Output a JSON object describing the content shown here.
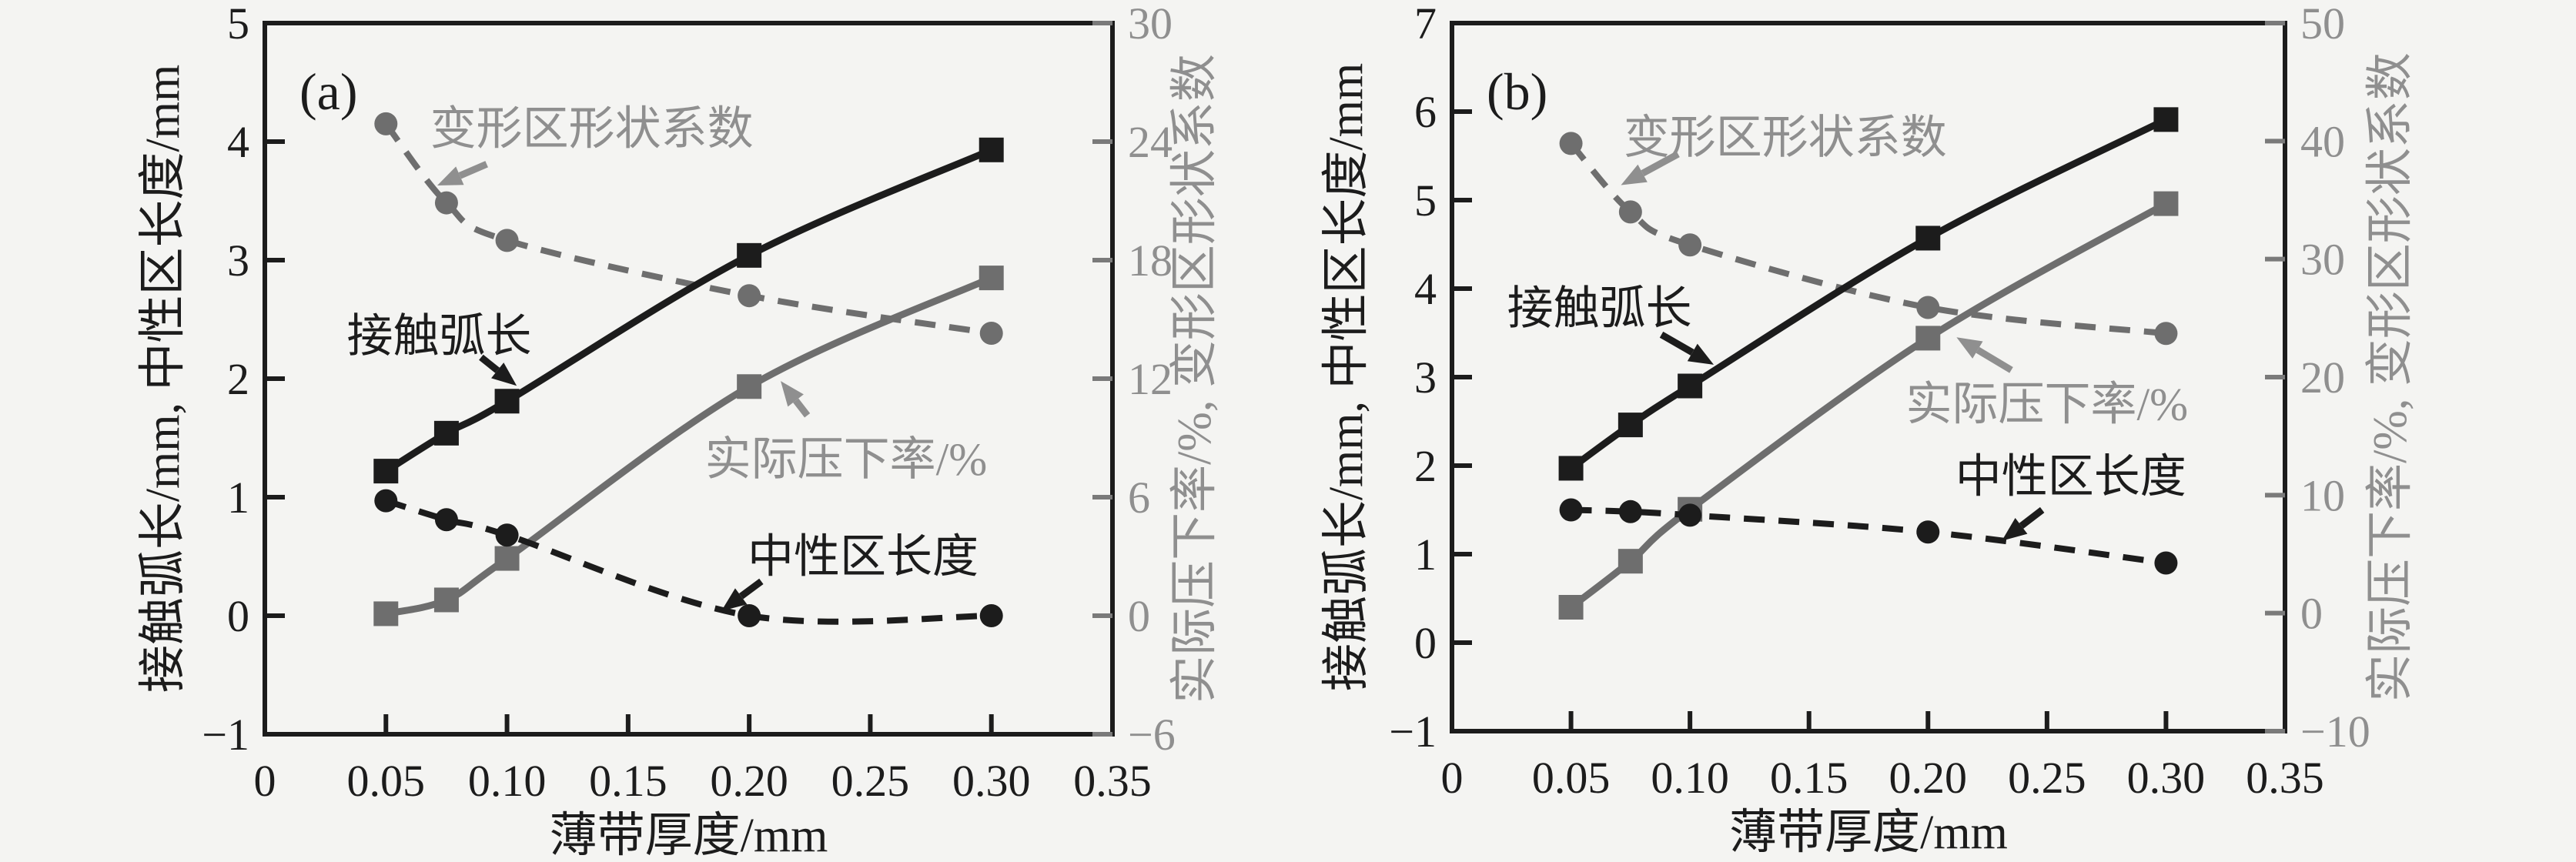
{
  "figure": {
    "background": "#f4f4f2",
    "description_labels": {
      "x_axis_title": "薄带厚度/mm",
      "left_axis_title": "接触弧长/mm, 中性区长度/mm",
      "right_axis_title": "实际压下率/%, 变形区形状系数"
    }
  },
  "chart_data": [
    {
      "type": "line",
      "panel_label": "(a)",
      "xlabel": "薄带厚度/mm",
      "ylabel_left": "接触弧长/mm, 中性区长度/mm",
      "ylabel_right": "实际压下率/%, 变形区形状系数",
      "xlim": [
        0,
        0.35
      ],
      "ylim_left": [
        -1,
        5
      ],
      "ylim_right": [
        -6,
        30
      ],
      "x_ticks": [
        0,
        0.05,
        0.1,
        0.15,
        0.2,
        0.25,
        0.3,
        0.35
      ],
      "x_tick_labels": [
        "0",
        "0.05",
        "0.10",
        "0.15",
        "0.20",
        "0.25",
        "0.30",
        "0.35"
      ],
      "y_ticks_left": [
        -1,
        0,
        1,
        2,
        3,
        4,
        5
      ],
      "y_tick_labels_left": [
        "−1",
        "0",
        "1",
        "2",
        "3",
        "4",
        "5"
      ],
      "y_ticks_right": [
        -6,
        0,
        6,
        12,
        18,
        24,
        30
      ],
      "y_tick_labels_right": [
        "−6",
        "0",
        "6",
        "12",
        "18",
        "24",
        "30"
      ],
      "x": [
        0.05,
        0.075,
        0.1,
        0.2,
        0.3
      ],
      "series": [
        {
          "name": "接触弧长",
          "axis": "left",
          "line": "solid",
          "marker": "square",
          "color": "#1c1c1c",
          "values": [
            1.22,
            1.54,
            1.81,
            3.04,
            3.93
          ]
        },
        {
          "name": "中性区长度",
          "axis": "left",
          "line": "dashed",
          "marker": "circle",
          "color": "#1c1c1c",
          "values": [
            0.97,
            0.81,
            0.68,
            0.0,
            0.0
          ]
        },
        {
          "name": "实际压下率/%",
          "axis": "right",
          "line": "solid",
          "marker": "square",
          "color": "#6e6e6e",
          "values": [
            0.1,
            0.8,
            2.9,
            11.6,
            17.1
          ]
        },
        {
          "name": "变形区形状系数",
          "axis": "right",
          "line": "dashed",
          "marker": "circle",
          "color": "#6e6e6e",
          "values": [
            24.9,
            20.9,
            19.0,
            16.2,
            14.3
          ]
        }
      ],
      "annotations": [
        {
          "text": "变形区形状系数",
          "color": "#8f8f8f",
          "x": 0.135,
          "y": 4.12,
          "arrow": {
            "x1": 0.0916,
            "y1": 3.81,
            "x2": 0.0712,
            "y2": 3.63
          }
        },
        {
          "text": "接触弧长",
          "color": "#1c1c1c",
          "x": 0.072,
          "y": 2.37,
          "arrow": {
            "x1": 0.0893,
            "y1": 2.18,
            "x2": 0.104,
            "y2": 1.94
          }
        },
        {
          "text": "实际压下率/%",
          "color": "#8f8f8f",
          "x": 0.24,
          "y": 1.33,
          "arrow": {
            "x1": 0.224,
            "y1": 1.69,
            "x2": 0.213,
            "y2": 1.98
          }
        },
        {
          "text": "中性区长度",
          "color": "#1c1c1c",
          "x": 0.247,
          "y": 0.51,
          "arrow": {
            "x1": 0.205,
            "y1": 0.29,
            "x2": 0.1885,
            "y2": 0.04
          }
        }
      ]
    },
    {
      "type": "line",
      "panel_label": "(b)",
      "xlabel": "薄带厚度/mm",
      "ylabel_left": "接触弧长/mm, 中性区长度/mm",
      "ylabel_right": "实际压下率/%, 变形区形状系数",
      "xlim": [
        0,
        0.35
      ],
      "ylim_left": [
        -1,
        7
      ],
      "ylim_right": [
        -10,
        50
      ],
      "x_ticks": [
        0,
        0.05,
        0.1,
        0.15,
        0.2,
        0.25,
        0.3,
        0.35
      ],
      "x_tick_labels": [
        "0",
        "0.05",
        "0.10",
        "0.15",
        "0.20",
        "0.25",
        "0.30",
        "0.35"
      ],
      "y_ticks_left": [
        -1,
        0,
        1,
        2,
        3,
        4,
        5,
        6,
        7
      ],
      "y_tick_labels_left": [
        "−1",
        "0",
        "1",
        "2",
        "3",
        "4",
        "5",
        "6",
        "7"
      ],
      "y_ticks_right": [
        -10,
        0,
        10,
        20,
        30,
        40,
        50
      ],
      "y_tick_labels_right": [
        "−10",
        "0",
        "10",
        "20",
        "30",
        "40",
        "50"
      ],
      "x": [
        0.05,
        0.075,
        0.1,
        0.2,
        0.3
      ],
      "series": [
        {
          "name": "接触弧长",
          "axis": "left",
          "line": "solid",
          "marker": "square",
          "color": "#1c1c1c",
          "values": [
            1.97,
            2.46,
            2.9,
            4.57,
            5.91
          ]
        },
        {
          "name": "中性区长度",
          "axis": "left",
          "line": "dashed",
          "marker": "circle",
          "color": "#1c1c1c",
          "values": [
            1.5,
            1.48,
            1.44,
            1.25,
            0.9
          ]
        },
        {
          "name": "实际压下率/%",
          "axis": "right",
          "line": "solid",
          "marker": "square",
          "color": "#6e6e6e",
          "values": [
            0.5,
            4.4,
            8.8,
            23.3,
            34.7
          ]
        },
        {
          "name": "变形区形状系数",
          "axis": "right",
          "line": "dashed",
          "marker": "circle",
          "color": "#6e6e6e",
          "values": [
            39.8,
            34.0,
            31.2,
            25.9,
            23.7
          ]
        }
      ],
      "annotations": [
        {
          "text": "变形区形状系数",
          "color": "#8f8f8f",
          "x": 0.14,
          "y": 5.72,
          "arrow": {
            "x1": 0.095,
            "y1": 5.52,
            "x2": 0.071,
            "y2": 5.17
          }
        },
        {
          "text": "接触弧长",
          "color": "#1c1c1c",
          "x": 0.062,
          "y": 3.79,
          "arrow": {
            "x1": 0.088,
            "y1": 3.48,
            "x2": 0.11,
            "y2": 3.14
          }
        },
        {
          "text": "实际压下率/%",
          "color": "#8f8f8f",
          "x": 0.25,
          "y": 2.71,
          "arrow": {
            "x1": 0.235,
            "y1": 3.08,
            "x2": 0.212,
            "y2": 3.45
          }
        },
        {
          "text": "中性区长度",
          "color": "#1c1c1c",
          "x": 0.26,
          "y": 1.89,
          "arrow": {
            "x1": 0.248,
            "y1": 1.5,
            "x2": 0.231,
            "y2": 1.15
          }
        }
      ]
    }
  ]
}
